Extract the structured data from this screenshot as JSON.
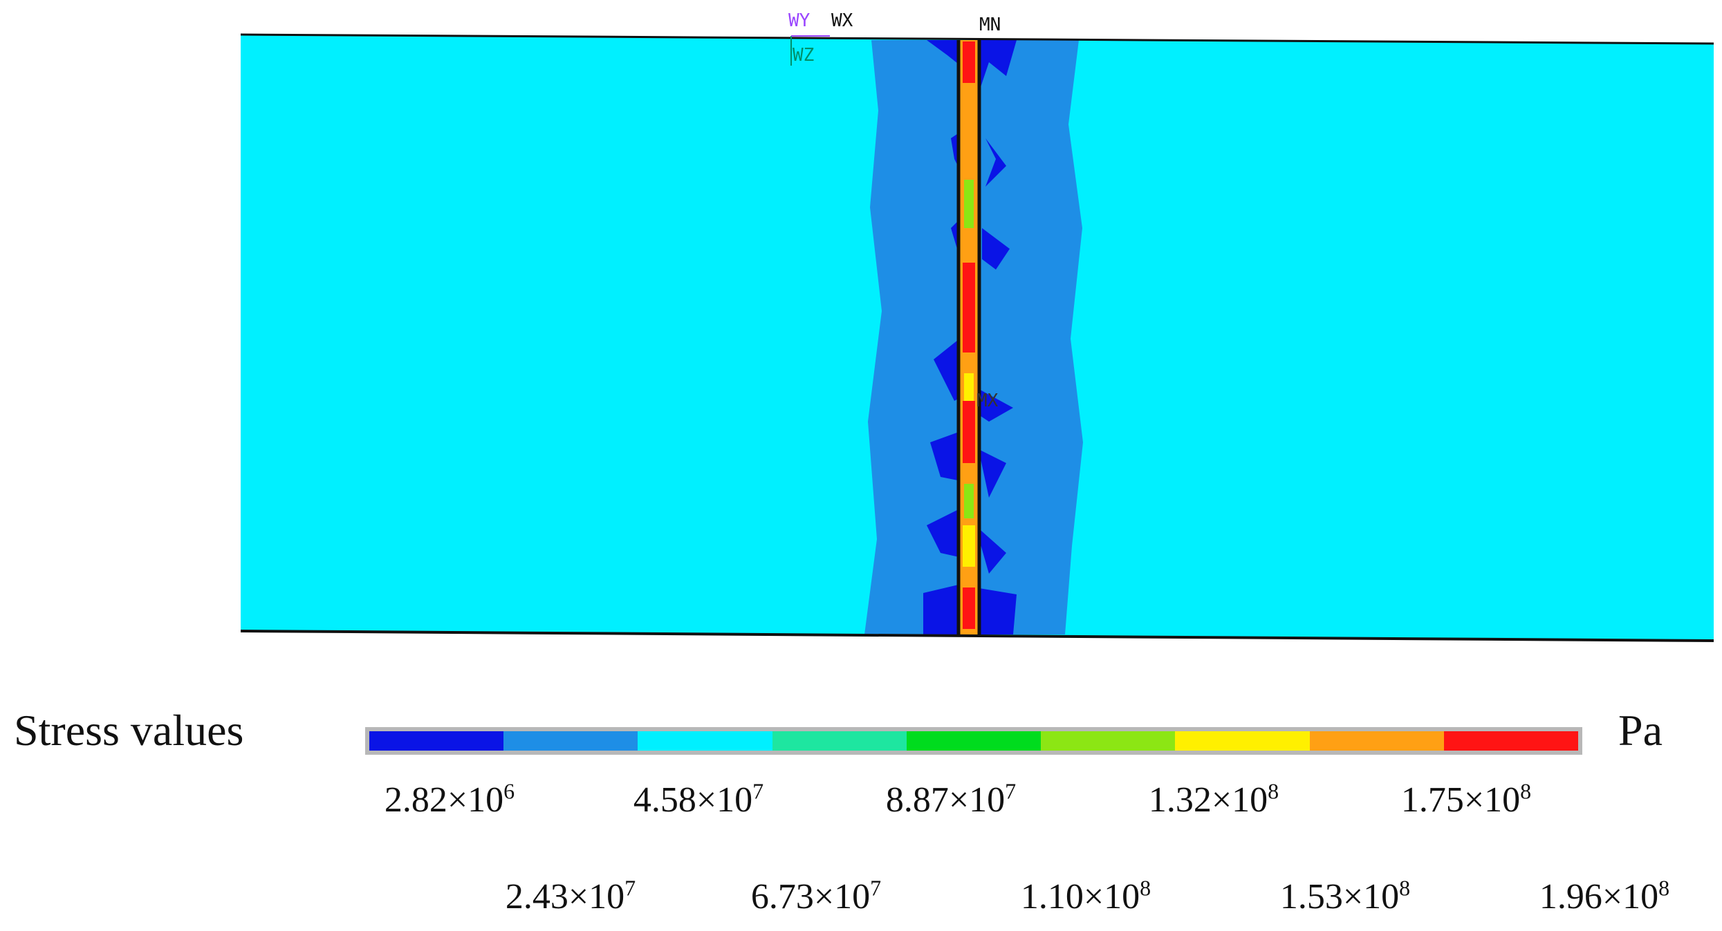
{
  "model_labels": {
    "wy": "WY",
    "wx": "WX",
    "wz": "WZ",
    "mn": "MN",
    "mx": "MX"
  },
  "legend": {
    "title": "Stress values",
    "unit": "Pa",
    "colors": [
      "#0a14e6",
      "#1e8ee6",
      "#00f0ff",
      "#1ee6a0",
      "#00dc1e",
      "#8ce614",
      "#fff000",
      "#ffa014",
      "#ff1414"
    ],
    "ticks_top": [
      {
        "mantissa": "2.82",
        "exp": "6"
      },
      {
        "mantissa": "4.58",
        "exp": "7"
      },
      {
        "mantissa": "8.87",
        "exp": "7"
      },
      {
        "mantissa": "1.32",
        "exp": "8"
      },
      {
        "mantissa": "1.75",
        "exp": "8"
      }
    ],
    "ticks_bottom": [
      {
        "mantissa": "2.43",
        "exp": "7"
      },
      {
        "mantissa": "6.73",
        "exp": "7"
      },
      {
        "mantissa": "1.10",
        "exp": "8"
      },
      {
        "mantissa": "1.53",
        "exp": "8"
      },
      {
        "mantissa": "1.96",
        "exp": "8"
      }
    ]
  },
  "contour_colors": {
    "background": "#00f0ff",
    "zone": "#1e8ee6",
    "deep": "#0a14e6",
    "stripe": "#ffa014",
    "peak": "#ff1414",
    "mid": "#8ce614",
    "low": "#fff000"
  }
}
